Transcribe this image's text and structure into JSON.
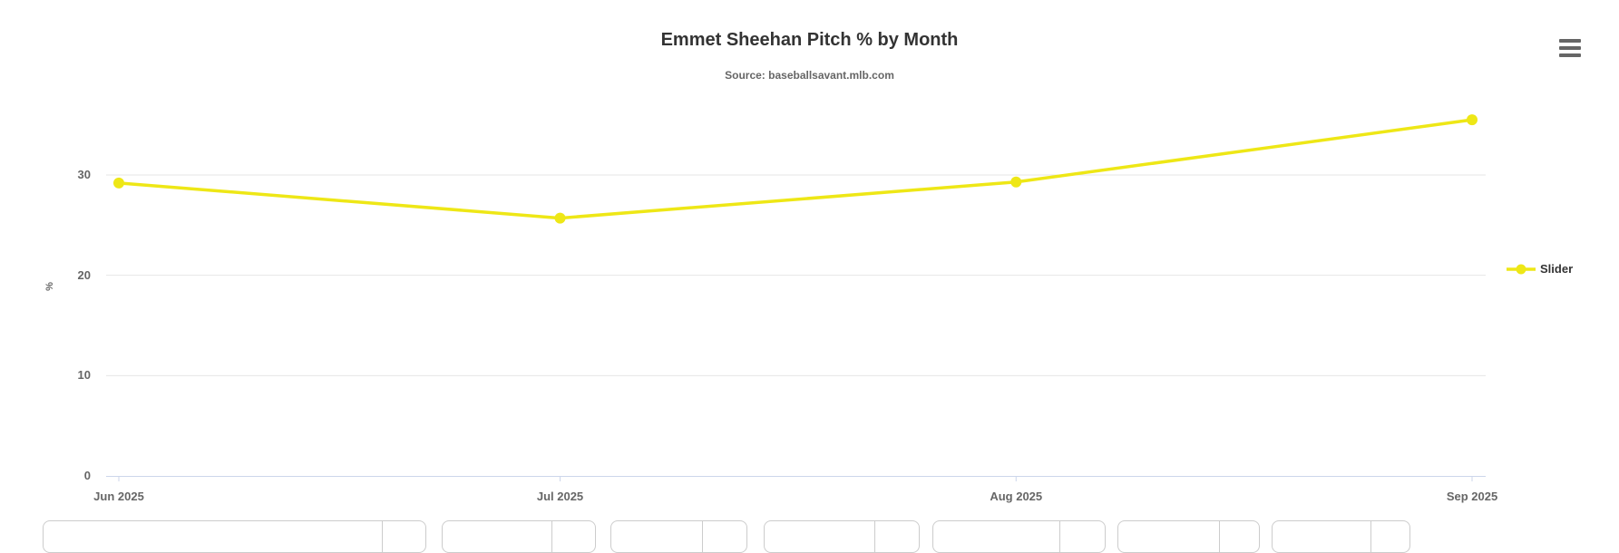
{
  "chart": {
    "title": "Emmet Sheehan Pitch % by Month",
    "subtitle": "Source: baseballsavant.mlb.com",
    "legend": {
      "items": [
        {
          "label": "Slider",
          "color": "#EEE716"
        }
      ]
    },
    "menu_icon": "hamburger-menu-icon"
  },
  "chart_data": {
    "type": "line",
    "title": "Emmet Sheehan Pitch % by Month",
    "subtitle": "Source: baseballsavant.mlb.com",
    "xlabel": "",
    "ylabel": "%",
    "x": [
      "Jun 2025",
      "Jul 2025",
      "Aug 2025",
      "Sep 2025"
    ],
    "x_dates": [
      "2025-06-01",
      "2025-07-01",
      "2025-08-01",
      "2025-09-01"
    ],
    "series": [
      {
        "name": "Slider",
        "color": "#EEE716",
        "values": [
          29.2,
          25.7,
          29.3,
          35.5
        ]
      }
    ],
    "yticks": [
      0,
      10,
      20,
      30
    ],
    "ylim": [
      0,
      38.4
    ],
    "grid": true,
    "legend_position": "right-middle",
    "marker": "circle"
  },
  "colors": {
    "series_yellow": "#EEE716",
    "gridline": "#E6E6E6",
    "axis_line": "#CCD6EB",
    "axis_label": "#666666",
    "title_text": "#333333",
    "box_border": "#CCCCCC",
    "menu_icon": "#666666"
  }
}
